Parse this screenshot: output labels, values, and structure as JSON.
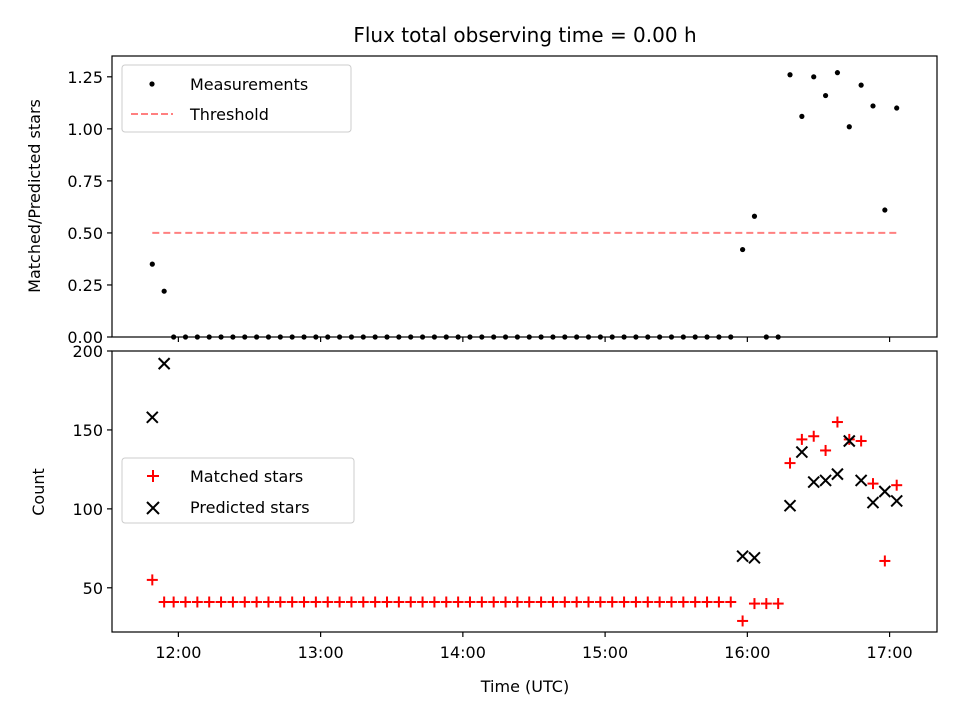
{
  "colors": {
    "measurement": "#000000",
    "threshold": "#ff8080",
    "matched": "#ff0000",
    "predicted": "#000000",
    "frame": "#000000"
  },
  "chart_data": [
    {
      "type": "scatter",
      "title": "Flux total observing time = 0.00 h",
      "xlabel": "",
      "ylabel": "Matched/Predicted stars",
      "xlim": [
        "11:32",
        "17:20"
      ],
      "ylim": [
        0,
        1.35
      ],
      "yticks": [
        0.0,
        0.25,
        0.5,
        0.75,
        1.0,
        1.25
      ],
      "ytick_labels": [
        "0.00",
        "0.25",
        "0.50",
        "0.75",
        "1.00",
        "1.25"
      ],
      "grid": false,
      "legend_position": "top-left",
      "series": [
        {
          "name": "Measurements",
          "marker": "dot",
          "points": [
            [
              "11:49",
              0.35
            ],
            [
              "11:54",
              0.22
            ],
            [
              "11:58",
              0
            ],
            [
              "12:03",
              0
            ],
            [
              "12:08",
              0
            ],
            [
              "12:13",
              0
            ],
            [
              "12:18",
              0
            ],
            [
              "12:23",
              0
            ],
            [
              "12:28",
              0
            ],
            [
              "12:33",
              0
            ],
            [
              "12:38",
              0
            ],
            [
              "12:43",
              0
            ],
            [
              "12:48",
              0
            ],
            [
              "12:53",
              0
            ],
            [
              "12:58",
              0
            ],
            [
              "13:03",
              0
            ],
            [
              "13:08",
              0
            ],
            [
              "13:13",
              0
            ],
            [
              "13:18",
              0
            ],
            [
              "13:23",
              0
            ],
            [
              "13:28",
              0
            ],
            [
              "13:33",
              0
            ],
            [
              "13:38",
              0
            ],
            [
              "13:43",
              0
            ],
            [
              "13:48",
              0
            ],
            [
              "13:53",
              0
            ],
            [
              "13:58",
              0
            ],
            [
              "14:03",
              0
            ],
            [
              "14:08",
              0
            ],
            [
              "14:13",
              0
            ],
            [
              "14:18",
              0
            ],
            [
              "14:23",
              0
            ],
            [
              "14:28",
              0
            ],
            [
              "14:33",
              0
            ],
            [
              "14:38",
              0
            ],
            [
              "14:43",
              0
            ],
            [
              "14:48",
              0
            ],
            [
              "14:53",
              0
            ],
            [
              "14:58",
              0
            ],
            [
              "15:03",
              0
            ],
            [
              "15:08",
              0
            ],
            [
              "15:13",
              0
            ],
            [
              "15:18",
              0
            ],
            [
              "15:23",
              0
            ],
            [
              "15:28",
              0
            ],
            [
              "15:33",
              0
            ],
            [
              "15:38",
              0
            ],
            [
              "15:43",
              0
            ],
            [
              "15:48",
              0
            ],
            [
              "15:53",
              0
            ],
            [
              "15:58",
              0.42
            ],
            [
              "16:03",
              0.58
            ],
            [
              "16:08",
              0
            ],
            [
              "16:13",
              0
            ],
            [
              "16:18",
              1.26
            ],
            [
              "16:23",
              1.06
            ],
            [
              "16:28",
              1.25
            ],
            [
              "16:33",
              1.16
            ],
            [
              "16:38",
              1.27
            ],
            [
              "16:43",
              1.01
            ],
            [
              "16:48",
              1.21
            ],
            [
              "16:53",
              1.11
            ],
            [
              "16:58",
              0.61
            ],
            [
              "17:03",
              1.1
            ]
          ]
        },
        {
          "name": "Threshold",
          "style": "dashed",
          "points": [
            [
              "11:49",
              0.5
            ],
            [
              "17:03",
              0.5
            ]
          ]
        }
      ]
    },
    {
      "type": "scatter",
      "title": "",
      "xlabel": "Time (UTC)",
      "ylabel": "Count",
      "xlim": [
        "11:32",
        "17:20"
      ],
      "ylim": [
        22,
        200
      ],
      "xticks": [
        "12:00",
        "13:00",
        "14:00",
        "15:00",
        "16:00",
        "17:00"
      ],
      "yticks": [
        50,
        100,
        150,
        200
      ],
      "ytick_labels": [
        "50",
        "100",
        "150",
        "200"
      ],
      "grid": false,
      "legend_position": "center-left",
      "series": [
        {
          "name": "Matched stars",
          "marker": "plus",
          "points": [
            [
              "11:49",
              55
            ],
            [
              "11:54",
              41
            ],
            [
              "11:58",
              41
            ],
            [
              "12:03",
              41
            ],
            [
              "12:08",
              41
            ],
            [
              "12:13",
              41
            ],
            [
              "12:18",
              41
            ],
            [
              "12:23",
              41
            ],
            [
              "12:28",
              41
            ],
            [
              "12:33",
              41
            ],
            [
              "12:38",
              41
            ],
            [
              "12:43",
              41
            ],
            [
              "12:48",
              41
            ],
            [
              "12:53",
              41
            ],
            [
              "12:58",
              41
            ],
            [
              "13:03",
              41
            ],
            [
              "13:08",
              41
            ],
            [
              "13:13",
              41
            ],
            [
              "13:18",
              41
            ],
            [
              "13:23",
              41
            ],
            [
              "13:28",
              41
            ],
            [
              "13:33",
              41
            ],
            [
              "13:38",
              41
            ],
            [
              "13:43",
              41
            ],
            [
              "13:48",
              41
            ],
            [
              "13:53",
              41
            ],
            [
              "13:58",
              41
            ],
            [
              "14:03",
              41
            ],
            [
              "14:08",
              41
            ],
            [
              "14:13",
              41
            ],
            [
              "14:18",
              41
            ],
            [
              "14:23",
              41
            ],
            [
              "14:28",
              41
            ],
            [
              "14:33",
              41
            ],
            [
              "14:38",
              41
            ],
            [
              "14:43",
              41
            ],
            [
              "14:48",
              41
            ],
            [
              "14:53",
              41
            ],
            [
              "14:58",
              41
            ],
            [
              "15:03",
              41
            ],
            [
              "15:08",
              41
            ],
            [
              "15:13",
              41
            ],
            [
              "15:18",
              41
            ],
            [
              "15:23",
              41
            ],
            [
              "15:28",
              41
            ],
            [
              "15:33",
              41
            ],
            [
              "15:38",
              41
            ],
            [
              "15:43",
              41
            ],
            [
              "15:48",
              41
            ],
            [
              "15:53",
              41
            ],
            [
              "15:58",
              29
            ],
            [
              "16:03",
              40
            ],
            [
              "16:08",
              40
            ],
            [
              "16:13",
              40
            ],
            [
              "16:18",
              129
            ],
            [
              "16:23",
              144
            ],
            [
              "16:28",
              146
            ],
            [
              "16:33",
              137
            ],
            [
              "16:38",
              155
            ],
            [
              "16:43",
              144
            ],
            [
              "16:48",
              143
            ],
            [
              "16:53",
              116
            ],
            [
              "16:58",
              67
            ],
            [
              "17:03",
              115
            ]
          ]
        },
        {
          "name": "Predicted stars",
          "marker": "x",
          "points": [
            [
              "11:49",
              158
            ],
            [
              "11:54",
              192
            ],
            [
              "15:58",
              70
            ],
            [
              "16:03",
              69
            ],
            [
              "16:18",
              102
            ],
            [
              "16:23",
              136
            ],
            [
              "16:28",
              117
            ],
            [
              "16:33",
              118
            ],
            [
              "16:38",
              122
            ],
            [
              "16:43",
              143
            ],
            [
              "16:48",
              118
            ],
            [
              "16:53",
              104
            ],
            [
              "16:58",
              111
            ],
            [
              "17:03",
              105
            ]
          ]
        }
      ]
    }
  ]
}
